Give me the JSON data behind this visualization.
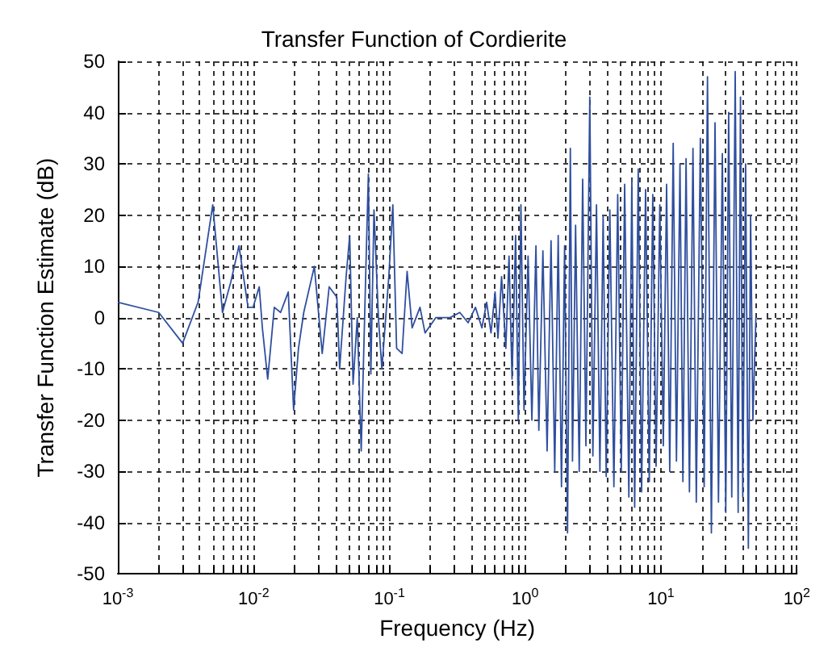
{
  "chart_data": {
    "type": "line",
    "title": "Transfer Function of Cordierite",
    "xlabel": "Frequency (Hz)",
    "ylabel": "Transfer Function Estimate (dB)",
    "log": "x",
    "grid": true,
    "line_style": "solid",
    "marker": "none",
    "xlim": [
      0.001,
      100
    ],
    "ylim": [
      -50,
      50
    ],
    "xticks": [
      {
        "value": 0.001,
        "label": "10$^{-3}$"
      },
      {
        "value": 0.002,
        "label": null
      },
      {
        "value": 0.003,
        "label": null
      },
      {
        "value": 0.004,
        "label": null
      },
      {
        "value": 0.005,
        "label": null
      },
      {
        "value": 0.006,
        "label": null
      },
      {
        "value": 0.007,
        "label": null
      },
      {
        "value": 0.008,
        "label": null
      },
      {
        "value": 0.009,
        "label": null
      },
      {
        "value": 0.01,
        "label": "10$^{-2}$"
      },
      {
        "value": 0.02,
        "label": null
      },
      {
        "value": 0.03,
        "label": null
      },
      {
        "value": 0.04,
        "label": null
      },
      {
        "value": 0.05,
        "label": null
      },
      {
        "value": 0.06,
        "label": null
      },
      {
        "value": 0.07,
        "label": null
      },
      {
        "value": 0.08,
        "label": null
      },
      {
        "value": 0.09,
        "label": null
      },
      {
        "value": 0.1,
        "label": "10$^{-1}$"
      },
      {
        "value": 0.2,
        "label": null
      },
      {
        "value": 0.3,
        "label": null
      },
      {
        "value": 0.4,
        "label": null
      },
      {
        "value": 0.5,
        "label": null
      },
      {
        "value": 0.6,
        "label": null
      },
      {
        "value": 0.7,
        "label": null
      },
      {
        "value": 0.8,
        "label": null
      },
      {
        "value": 0.9,
        "label": null
      },
      {
        "value": 1,
        "label": "10$^{0}$"
      },
      {
        "value": 2,
        "label": null
      },
      {
        "value": 3,
        "label": null
      },
      {
        "value": 4,
        "label": null
      },
      {
        "value": 5,
        "label": null
      },
      {
        "value": 6,
        "label": null
      },
      {
        "value": 7,
        "label": null
      },
      {
        "value": 8,
        "label": null
      },
      {
        "value": 9,
        "label": null
      },
      {
        "value": 10,
        "label": "10$^{1}$"
      },
      {
        "value": 20,
        "label": null
      },
      {
        "value": 30,
        "label": null
      },
      {
        "value": 40,
        "label": null
      },
      {
        "value": 50,
        "label": null
      },
      {
        "value": 60,
        "label": null
      },
      {
        "value": 70,
        "label": null
      },
      {
        "value": 80,
        "label": null
      },
      {
        "value": 90,
        "label": null
      },
      {
        "value": 100,
        "label": "10$^{2}$"
      }
    ],
    "yticks": [
      -50,
      -40,
      -30,
      -20,
      -10,
      0,
      10,
      20,
      30,
      40,
      50
    ],
    "series": [
      {
        "color": "#2f4f9f",
        "x": [
          0.001,
          0.002,
          0.003,
          0.0039,
          0.005,
          0.0059,
          0.0068,
          0.0078,
          0.0091,
          0.0099,
          0.011,
          0.0116,
          0.0127,
          0.0142,
          0.0158,
          0.018,
          0.0197,
          0.0214,
          0.0234,
          0.028,
          0.032,
          0.036,
          0.041,
          0.043,
          0.048,
          0.051,
          0.054,
          0.058,
          0.062,
          0.067,
          0.07,
          0.073,
          0.077,
          0.083,
          0.088,
          0.099,
          0.106,
          0.113,
          0.124,
          0.135,
          0.147,
          0.168,
          0.183,
          0.22,
          0.28,
          0.33,
          0.38,
          0.43,
          0.48,
          0.52,
          0.56,
          0.6,
          0.63,
          0.67,
          0.72,
          0.76,
          0.8,
          0.85,
          0.89,
          0.93,
          0.98,
          1.05,
          1.12,
          1.2,
          1.26,
          1.35,
          1.45,
          1.55,
          1.65,
          1.75,
          1.85,
          1.95,
          2.05,
          2.15,
          2.23,
          2.35,
          2.5,
          2.65,
          2.8,
          2.99,
          3.15,
          3.35,
          3.55,
          3.75,
          3.95,
          4.2,
          4.5,
          4.8,
          5.1,
          5.4,
          5.8,
          6.1,
          6.4,
          6.8,
          7.2,
          7.7,
          8.2,
          8.7,
          9.2,
          9.8,
          10.4,
          11,
          11.6,
          12.3,
          13,
          13.8,
          14.5,
          15.3,
          16.2,
          17.2,
          18.2,
          19.5,
          20.8,
          22,
          23.5,
          25,
          26.5,
          28.3,
          30,
          31.5,
          33.2,
          35.2,
          37,
          38.5,
          40,
          42,
          44,
          45.7,
          47.5,
          50
        ],
        "values": [
          3,
          1,
          -5,
          3,
          22,
          1,
          7,
          14,
          2,
          2,
          6,
          -2,
          -12,
          2,
          1,
          5,
          -18,
          -6,
          1,
          10,
          -7,
          6,
          4,
          -10,
          8,
          16,
          -13,
          0,
          -26,
          9,
          28,
          -11,
          21,
          0,
          -10,
          8,
          22,
          -6,
          -7,
          9,
          -2,
          2,
          -3,
          0,
          0,
          1,
          -1,
          2,
          -2,
          3,
          -3,
          5,
          -4,
          8,
          -6,
          12,
          -12,
          16,
          -20,
          22,
          -18,
          12,
          -20,
          14,
          -22,
          13,
          -26,
          15,
          -30,
          16,
          -33,
          14,
          -42,
          33,
          -28,
          18,
          -30,
          27,
          -25,
          43,
          -27,
          22,
          -30,
          20,
          -31,
          21,
          -33,
          24,
          -30,
          26,
          -35,
          27,
          -37,
          29,
          -34,
          25,
          -32,
          24,
          -29,
          22,
          -25,
          26,
          -30,
          34,
          -28,
          30,
          -32,
          31,
          -34,
          33,
          -36,
          35,
          -33,
          47,
          -42,
          38,
          -36,
          32,
          -38,
          40,
          -35,
          48,
          -38,
          43,
          -35,
          30,
          -45,
          20,
          -20,
          0
        ]
      }
    ]
  }
}
